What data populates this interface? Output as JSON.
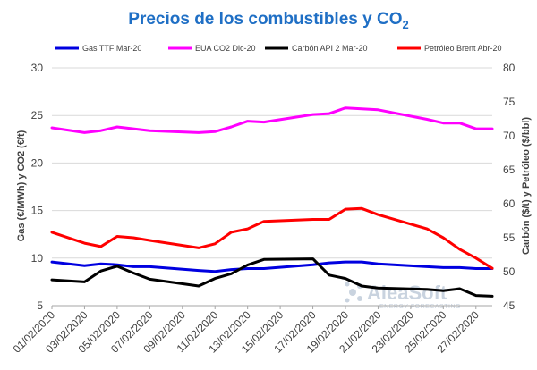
{
  "chart_data": {
    "type": "line",
    "title": "Precios de los combustibles y CO",
    "title_subscript": "2",
    "ylabel_left": "Gas (€/MWh) y CO2 (€/t)",
    "ylabel_right": "Carbón ($/t) y Petróleo ($/bbl)",
    "ylim_left": [
      5,
      30
    ],
    "yticks_left": [
      "5",
      "10",
      "15",
      "20",
      "25",
      "30"
    ],
    "ylim_right": [
      45,
      80
    ],
    "yticks_right": [
      "45",
      "50",
      "55",
      "60",
      "65",
      "70",
      "75",
      "80"
    ],
    "grid": "horizontal",
    "legend_position": "top",
    "xlim": [
      "2020-02-01",
      "2020-02-28"
    ],
    "x_tick_labels": [
      "01/02/2020",
      "03/02/2020",
      "05/02/2020",
      "07/02/2020",
      "09/02/2020",
      "11/02/2020",
      "13/02/2020",
      "15/02/2020",
      "17/02/2020",
      "19/02/2020",
      "21/02/2020",
      "23/02/2020",
      "25/02/2020",
      "27/02/2020"
    ],
    "x_tick_dates": [
      "2020-02-01",
      "2020-02-03",
      "2020-02-05",
      "2020-02-07",
      "2020-02-09",
      "2020-02-11",
      "2020-02-13",
      "2020-02-15",
      "2020-02-17",
      "2020-02-19",
      "2020-02-21",
      "2020-02-23",
      "2020-02-25",
      "2020-02-27"
    ],
    "series": [
      {
        "name": "Gas TTF Mar-20",
        "color": "#0000e0",
        "axis": "left",
        "x": [
          "2020-02-01",
          "2020-02-03",
          "2020-02-04",
          "2020-02-05",
          "2020-02-06",
          "2020-02-07",
          "2020-02-10",
          "2020-02-11",
          "2020-02-12",
          "2020-02-13",
          "2020-02-14",
          "2020-02-17",
          "2020-02-18",
          "2020-02-19",
          "2020-02-20",
          "2020-02-21",
          "2020-02-24",
          "2020-02-25",
          "2020-02-26",
          "2020-02-27",
          "2020-02-28"
        ],
        "y": [
          9.6,
          9.2,
          9.4,
          9.3,
          9.1,
          9.1,
          8.7,
          8.6,
          8.8,
          8.9,
          8.9,
          9.3,
          9.5,
          9.6,
          9.6,
          9.4,
          9.1,
          9.0,
          9.0,
          8.9,
          8.9
        ]
      },
      {
        "name": "EUA CO2 Dic-20",
        "color": "#ff00ff",
        "axis": "left",
        "x": [
          "2020-02-01",
          "2020-02-03",
          "2020-02-04",
          "2020-02-05",
          "2020-02-06",
          "2020-02-07",
          "2020-02-10",
          "2020-02-11",
          "2020-02-12",
          "2020-02-13",
          "2020-02-14",
          "2020-02-17",
          "2020-02-18",
          "2020-02-19",
          "2020-02-20",
          "2020-02-21",
          "2020-02-24",
          "2020-02-25",
          "2020-02-26",
          "2020-02-27",
          "2020-02-28"
        ],
        "y": [
          23.7,
          23.2,
          23.4,
          23.8,
          23.6,
          23.4,
          23.2,
          23.3,
          23.8,
          24.4,
          24.3,
          25.1,
          25.2,
          25.8,
          25.7,
          25.6,
          24.6,
          24.2,
          24.2,
          23.6,
          23.6
        ]
      },
      {
        "name": "Carbón API 2 Mar-20",
        "color": "#000000",
        "axis": "right",
        "x": [
          "2020-02-01",
          "2020-02-03",
          "2020-02-04",
          "2020-02-05",
          "2020-02-06",
          "2020-02-07",
          "2020-02-10",
          "2020-02-11",
          "2020-02-12",
          "2020-02-13",
          "2020-02-14",
          "2020-02-17",
          "2020-02-18",
          "2020-02-19",
          "2020-02-20",
          "2020-02-21",
          "2020-02-24",
          "2020-02-25",
          "2020-02-26",
          "2020-02-27",
          "2020-02-28"
        ],
        "y": [
          48.8,
          48.5,
          50.1,
          50.8,
          49.8,
          48.9,
          47.9,
          49.0,
          49.7,
          51.0,
          51.8,
          51.9,
          49.5,
          49.0,
          47.9,
          47.6,
          47.4,
          47.2,
          47.5,
          46.5,
          46.4
        ]
      },
      {
        "name": "Petróleo Brent Abr-20",
        "color": "#ff0000",
        "axis": "right",
        "x": [
          "2020-02-01",
          "2020-02-03",
          "2020-02-04",
          "2020-02-05",
          "2020-02-06",
          "2020-02-07",
          "2020-02-10",
          "2020-02-11",
          "2020-02-12",
          "2020-02-13",
          "2020-02-14",
          "2020-02-17",
          "2020-02-18",
          "2020-02-19",
          "2020-02-20",
          "2020-02-21",
          "2020-02-24",
          "2020-02-25",
          "2020-02-26",
          "2020-02-27",
          "2020-02-28"
        ],
        "y": [
          55.8,
          54.2,
          53.7,
          55.2,
          55.0,
          54.6,
          53.5,
          54.1,
          55.8,
          56.3,
          57.4,
          57.7,
          57.7,
          59.2,
          59.3,
          58.4,
          56.3,
          55.0,
          53.3,
          52.0,
          50.5
        ]
      }
    ]
  },
  "watermark": {
    "brand": "AleaSoft",
    "tagline": "ENERGY FORECASTING",
    "icon": "aleasoft-logo-icon"
  }
}
